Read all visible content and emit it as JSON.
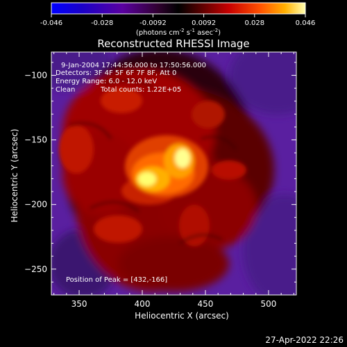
{
  "colorbar": {
    "tick_labels": [
      "-0.046",
      "-0.028",
      "-0.0092",
      "0.0092",
      "0.028",
      "0.046"
    ],
    "range": [
      -0.046,
      0.046
    ],
    "unit_label": "(photons cm",
    "unit_exp1": "-2",
    "unit_mid": " s",
    "unit_exp2": "-1",
    "unit_end": " asec",
    "unit_exp3": "-2",
    "unit_close": ")"
  },
  "chart_data": {
    "type": "heatmap",
    "title": "Reconstructed RHESSI Image",
    "xlabel": "Heliocentric X (arcsec)",
    "ylabel": "Heliocentric Y (arcsec)",
    "xlim": [
      328,
      522
    ],
    "ylim": [
      -270,
      -82
    ],
    "xticks": [
      350,
      400,
      450,
      500
    ],
    "yticks": [
      -100,
      -150,
      -200,
      -250
    ],
    "peak": [
      432,
      -166
    ],
    "colormap": "rhessi red-yellow / purple",
    "grid": false
  },
  "annotations": {
    "time_range": "9-Jan-2004 17:44:56.000 to 17:50:56.000",
    "detectors": "Detectors: 3F 4F 5F 6F 7F 8F, Att 0",
    "energy_range": "Energy Range: 6.0 - 12.0 keV",
    "algorithm": "Clean",
    "total_counts": "Total counts: 1.22E+05",
    "peak_position": "Position of Peak = [432,-166]"
  },
  "timestamp": "27-Apr-2022 22:26"
}
